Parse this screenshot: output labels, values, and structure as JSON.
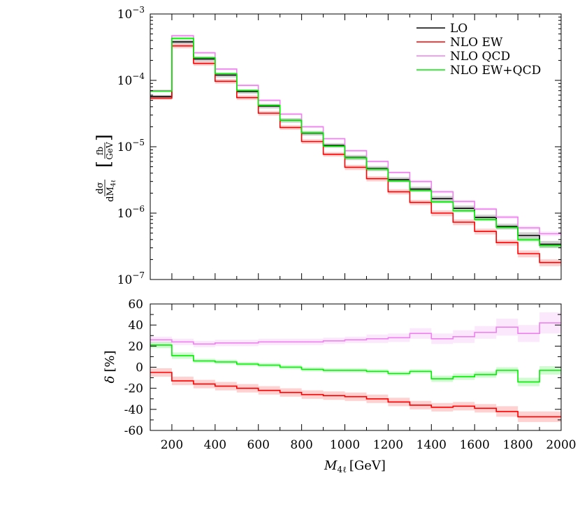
{
  "chart_data": [
    {
      "type": "line",
      "step": true,
      "yscale": "log",
      "xlim": [
        100,
        2000
      ],
      "ylim": [
        1e-07,
        0.001
      ],
      "ytick_labels": [
        {
          "base": "10",
          "exp": "−3"
        },
        {
          "base": "10",
          "exp": "−4"
        },
        {
          "base": "10",
          "exp": "−5"
        },
        {
          "base": "10",
          "exp": "−6"
        },
        {
          "base": "10",
          "exp": "−7"
        }
      ],
      "ylabel": {
        "num": "dσ",
        "den": "dM",
        "den_sub": "4ℓ",
        "unit_num": "fb",
        "unit_den": "GeV"
      },
      "legend": {
        "position": "top-right"
      },
      "bin_edges": [
        100,
        200,
        300,
        400,
        500,
        600,
        700,
        800,
        900,
        1000,
        1100,
        1200,
        1300,
        1400,
        1500,
        1600,
        1700,
        1800,
        1900,
        2000
      ],
      "series": [
        {
          "name": "LO",
          "color": "#000000",
          "values": [
            5.7e-05,
            0.00038,
            0.00021,
            0.00012,
            6.8e-05,
            4.1e-05,
            2.5e-05,
            1.6e-05,
            1.05e-05,
            6.9e-06,
            4.7e-06,
            3.2e-06,
            2.3e-06,
            1.65e-06,
            1.18e-06,
            8.6e-07,
            6.3e-07,
            4.6e-07,
            3.4e-07
          ],
          "band": [
            0.06,
            0.08,
            0.08,
            0.08,
            0.08,
            0.08,
            0.08,
            0.08,
            0.08,
            0.09,
            0.09,
            0.09,
            0.09,
            0.1,
            0.1,
            0.1,
            0.1,
            0.12,
            0.12
          ]
        },
        {
          "name": "NLO EW",
          "color": "#ff0000",
          "values": [
            5.4e-05,
            0.00033,
            0.00018,
            9.7e-05,
            5.5e-05,
            3.2e-05,
            1.95e-05,
            1.2e-05,
            7.7e-06,
            4.9e-06,
            3.3e-06,
            2.1e-06,
            1.45e-06,
            1e-06,
            7.3e-07,
            5.3e-07,
            3.6e-07,
            2.45e-07,
            1.8e-07
          ],
          "band": [
            0.06,
            0.08,
            0.08,
            0.08,
            0.08,
            0.08,
            0.08,
            0.08,
            0.08,
            0.09,
            0.09,
            0.09,
            0.09,
            0.1,
            0.1,
            0.1,
            0.1,
            0.12,
            0.12
          ]
        },
        {
          "name": "NLO QCD",
          "color": "#ee82ee",
          "values": [
            7e-05,
            0.00047,
            0.00026,
            0.000148,
            8.4e-05,
            5e-05,
            3.1e-05,
            2e-05,
            1.32e-05,
            8.7e-06,
            6e-06,
            4.1e-06,
            3e-06,
            2.1e-06,
            1.5e-06,
            1.15e-06,
            8.7e-07,
            6e-07,
            4.9e-07
          ],
          "band": [
            0.04,
            0.04,
            0.04,
            0.04,
            0.04,
            0.04,
            0.04,
            0.04,
            0.04,
            0.04,
            0.04,
            0.04,
            0.05,
            0.05,
            0.05,
            0.05,
            0.06,
            0.07,
            0.08
          ]
        },
        {
          "name": "NLO EW+QCD",
          "color": "#00ee00",
          "values": [
            6.9e-05,
            0.00043,
            0.00022,
            0.000126,
            7e-05,
            4.2e-05,
            2.5e-05,
            1.62e-05,
            1.02e-05,
            6.8e-06,
            4.6e-06,
            3.05e-06,
            2.2e-06,
            1.47e-06,
            1.08e-06,
            8e-07,
            6.1e-07,
            3.95e-07,
            3.25e-07
          ],
          "band": [
            0.04,
            0.04,
            0.04,
            0.04,
            0.04,
            0.04,
            0.04,
            0.04,
            0.04,
            0.04,
            0.04,
            0.04,
            0.05,
            0.05,
            0.05,
            0.05,
            0.06,
            0.07,
            0.08
          ]
        }
      ]
    },
    {
      "type": "line",
      "step": true,
      "xlim": [
        100,
        2000
      ],
      "ylim": [
        -60,
        60
      ],
      "xticks": [
        200,
        400,
        600,
        800,
        1000,
        1200,
        1400,
        1600,
        1800,
        2000
      ],
      "yticks": [
        60,
        40,
        20,
        0,
        -20,
        -40,
        -60
      ],
      "ytick_labels": [
        "60",
        "40",
        "20",
        "0",
        "-20",
        "-40",
        "-60"
      ],
      "ylabel": {
        "symbol": "δ",
        "unit": "[%]"
      },
      "xlabel": {
        "symbol": "M",
        "sub": "4ℓ",
        "unit": "[GeV]"
      },
      "bin_edges": [
        100,
        200,
        300,
        400,
        500,
        600,
        700,
        800,
        900,
        1000,
        1100,
        1200,
        1300,
        1400,
        1500,
        1600,
        1700,
        1800,
        1900,
        2000
      ],
      "series": [
        {
          "name": "NLO EW",
          "color": "#ff0000",
          "values": [
            -5,
            -13,
            -16,
            -18,
            -20,
            -22,
            -24,
            -26,
            -27,
            -28,
            -30,
            -33,
            -36,
            -38,
            -37,
            -39,
            -42,
            -47,
            -47
          ],
          "band": [
            4,
            4,
            4,
            4,
            4,
            4,
            4,
            4,
            4,
            4,
            4,
            4,
            4,
            4,
            4,
            4,
            5,
            5,
            5
          ]
        },
        {
          "name": "NLO QCD",
          "color": "#ee82ee",
          "values": [
            26,
            24,
            22,
            23,
            23,
            24,
            24,
            24,
            25,
            26,
            27,
            28,
            32,
            27,
            29,
            33,
            38,
            32,
            42
          ],
          "band": [
            3,
            3,
            3,
            3,
            3,
            3,
            3,
            3,
            3,
            3,
            4,
            4,
            5,
            5,
            6,
            6,
            8,
            8,
            10
          ]
        },
        {
          "name": "NLO EW+QCD",
          "color": "#00ee00",
          "values": [
            21,
            11,
            6,
            5,
            3,
            2,
            0,
            -2,
            -3,
            -3,
            -4,
            -6,
            -4,
            -11,
            -9,
            -7,
            -3,
            -14,
            -3
          ],
          "band": [
            3,
            3,
            2,
            2,
            2,
            2,
            2,
            2,
            2,
            2,
            2,
            2,
            2,
            3,
            3,
            3,
            3,
            4,
            4
          ]
        }
      ]
    }
  ]
}
